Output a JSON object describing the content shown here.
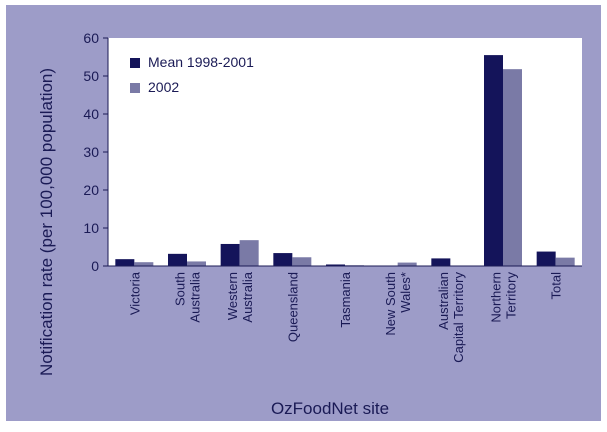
{
  "chart_data": {
    "type": "bar",
    "title": "",
    "xlabel": "OzFoodNet site",
    "ylabel": "Notification rate (per 100,000 population)",
    "ylim": [
      0,
      60
    ],
    "yticks": [
      0,
      10,
      20,
      30,
      40,
      50,
      60
    ],
    "grid": false,
    "legend_position": "top-left",
    "categories": [
      "Victoria",
      "South Australia",
      "Western Australia",
      "Queensland",
      "Tasmania",
      "New South Wales*",
      "Australian Capital Territory",
      "Northern Territory",
      "Total"
    ],
    "category_lines": [
      [
        "Victoria"
      ],
      [
        "South",
        "Australia"
      ],
      [
        "Western",
        "Australia"
      ],
      [
        "Queensland"
      ],
      [
        "Tasmania"
      ],
      [
        "New South",
        "Wales*"
      ],
      [
        "Australian",
        "Capital Territory"
      ],
      [
        "Northern",
        "Territory"
      ],
      [
        "Total"
      ]
    ],
    "series": [
      {
        "name": "Mean 1998-2001",
        "color": "#14145a",
        "values": [
          1.8,
          3.2,
          5.8,
          3.4,
          0.4,
          0.1,
          2.0,
          55.5,
          3.8
        ]
      },
      {
        "name": "2002",
        "color": "#7a7aa6",
        "values": [
          1.0,
          1.2,
          6.8,
          2.3,
          0.2,
          0.9,
          0.0,
          51.8,
          2.2
        ]
      }
    ]
  },
  "colors": {
    "frame": "#9d9cc8",
    "plot_background": "#ffffff",
    "text": "#1a1a55"
  }
}
